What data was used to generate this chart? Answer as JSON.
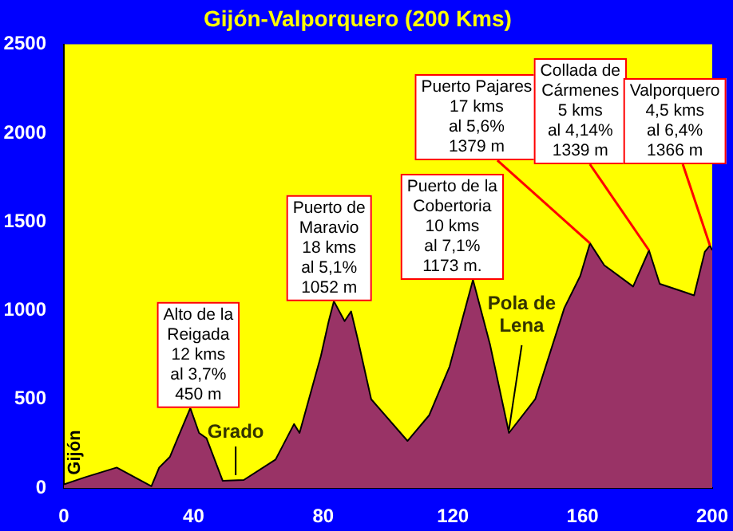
{
  "chart_data": {
    "type": "area",
    "title": "Gijón-Valporquero (200 Kms)",
    "x": [
      0,
      6.5,
      16.3,
      27,
      29.4,
      32.7,
      35.1,
      39,
      41.7,
      44,
      49,
      55.5,
      65.3,
      71,
      72.7,
      79.3,
      81.7,
      83.3,
      86.6,
      88.6,
      90.7,
      94.8,
      106,
      112.7,
      119,
      126.2,
      131.5,
      137.3,
      145.4,
      154.4,
      159.3,
      162.3,
      166.7,
      175.6,
      180.5,
      183.8,
      191.2,
      194.4,
      197.7,
      199.3,
      200
    ],
    "series": [
      {
        "color": "#993366",
        "values": [
          20,
          60,
          115,
          10,
          115,
          175,
          280,
          450,
          310,
          280,
          40,
          45,
          160,
          360,
          310,
          745,
          940,
          1052,
          940,
          995,
          835,
          500,
          265,
          410,
          685,
          1173,
          805,
          310,
          500,
          1015,
          1195,
          1379,
          1255,
          1135,
          1339,
          1150,
          1105,
          1085,
          1330,
          1366,
          1340
        ]
      }
    ],
    "xlim": [
      0,
      200
    ],
    "ylim": [
      0,
      2500
    ],
    "xticks": [
      0,
      40,
      80,
      120,
      160,
      200
    ],
    "yticks": [
      0,
      500,
      1000,
      1500,
      2000,
      2500
    ],
    "annotations": [
      {
        "text": "Gijón",
        "x": 0,
        "y": 20
      },
      {
        "text": "Alto de la\nReigada\n12 kms\nal 3,7%\n450 m",
        "x": 39,
        "y": 450
      },
      {
        "text": "Grado",
        "x": 53,
        "y": 45
      },
      {
        "text": "Puerto de\nMaravio\n18 kms\nal 5,1%\n1052 m",
        "x": 83.3,
        "y": 1052
      },
      {
        "text": "Puerto de la\nCobertoria\n10 kms\nal 7,1%\n1173 m.",
        "x": 126.2,
        "y": 1173
      },
      {
        "text": "Pola de\nLena",
        "x": 137.3,
        "y": 310
      },
      {
        "text": "Puerto Pajares\n17 kms\nal 5,6%\n1379 m",
        "x": 162.3,
        "y": 1379
      },
      {
        "text": "Collada de\nCármenes\n5 kms\nal 4,14%\n1339 m",
        "x": 180.5,
        "y": 1339
      },
      {
        "text": "Valporquero\n4,5 kms\nal 6,4%\n1366 m",
        "x": 199.3,
        "y": 1366
      }
    ]
  }
}
